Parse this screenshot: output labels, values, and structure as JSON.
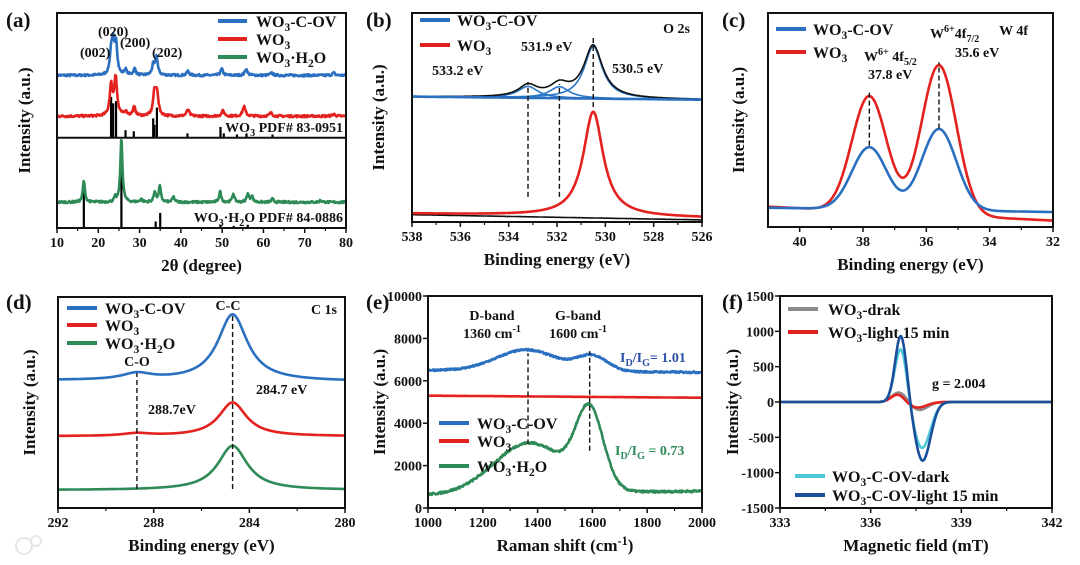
{
  "watermark": "大数跨境",
  "chart_data": [
    {
      "id": "a",
      "panel_label": "(a)",
      "type": "line",
      "xlabel": "2θ (degree)",
      "ylabel": "Intensity (a.u.)",
      "xlim": [
        10,
        80
      ],
      "ylim": [
        0,
        10
      ],
      "xticks": [
        10,
        20,
        30,
        40,
        50,
        60,
        70,
        80
      ],
      "yticks": [],
      "divider_y": 4.2,
      "legend": [
        "WO_3-C-OV",
        "WO_3",
        "WO_3·H_2O"
      ],
      "series": [
        {
          "name": "WO_3-C-OV",
          "color": "#2a6fc0",
          "baseline": [
            7.1,
            7.1
          ],
          "shape": "l",
          "width": 0.35,
          "noise": 0.05,
          "peaks": [
            [
              23.1,
              1.0
            ],
            [
              23.6,
              1.3
            ],
            [
              24.3,
              1.45
            ],
            [
              26.6,
              0.25
            ],
            [
              28.8,
              0.3
            ],
            [
              33.3,
              0.45
            ],
            [
              34.1,
              0.85
            ],
            [
              41.7,
              0.2
            ],
            [
              49.9,
              0.3
            ],
            [
              55.8,
              0.3
            ],
            [
              62,
              0.12
            ],
            [
              77,
              0.12
            ]
          ]
        },
        {
          "name": "WO_3",
          "color": "#e3211f",
          "baseline": [
            5.2,
            5.2
          ],
          "shape": "l",
          "width": 0.4,
          "noise": 0.05,
          "peaks": [
            [
              23.1,
              1.4
            ],
            [
              24.2,
              1.8
            ],
            [
              26.6,
              0.2
            ],
            [
              28.7,
              0.4
            ],
            [
              33.6,
              1.0
            ],
            [
              34.2,
              1.05
            ],
            [
              41.7,
              0.3
            ],
            [
              50.2,
              0.25
            ],
            [
              55.3,
              0.45
            ],
            [
              61.8,
              0.15
            ],
            [
              77,
              0.1
            ]
          ]
        },
        {
          "name": "WO_3·H_2O",
          "color": "#2e8b57",
          "baseline": [
            1.2,
            1.2
          ],
          "shape": "l",
          "width": 0.3,
          "noise": 0.05,
          "peaks": [
            [
              16.5,
              1.0
            ],
            [
              24.1,
              0.2
            ],
            [
              25.6,
              3.0
            ],
            [
              30.4,
              0.15
            ],
            [
              33.7,
              0.5
            ],
            [
              34.9,
              0.75
            ],
            [
              38.2,
              0.25
            ],
            [
              49.5,
              0.5
            ],
            [
              52.7,
              0.4
            ],
            [
              56.2,
              0.4
            ],
            [
              57.2,
              0.3
            ],
            [
              62.2,
              0.15
            ],
            [
              73.9,
              0.1
            ]
          ]
        }
      ],
      "reference_sticks": [
        {
          "name": "WO_3 PDF# 83-0951",
          "base": 4.2,
          "sticks": [
            [
              23.1,
              1.9
            ],
            [
              23.6,
              1.6
            ],
            [
              24.3,
              1.7
            ],
            [
              26.6,
              0.35
            ],
            [
              28.6,
              0.3
            ],
            [
              33.3,
              0.9
            ],
            [
              33.6,
              0.6
            ],
            [
              34.2,
              1.4
            ],
            [
              41.6,
              0.2
            ],
            [
              49.6,
              0.5
            ],
            [
              50.4,
              0.2
            ],
            [
              53.6,
              0.15
            ],
            [
              55.9,
              0.2
            ],
            [
              62.2,
              0.15
            ]
          ]
        },
        {
          "name": "WO_3·H_2O PDF# 84-0886",
          "base": 0,
          "sticks": [
            [
              16.5,
              1.9
            ],
            [
              25.6,
              2.8
            ],
            [
              33.9,
              0.3
            ],
            [
              35.0,
              0.7
            ],
            [
              49.6,
              0.15
            ],
            [
              52.8,
              0.1
            ],
            [
              56.2,
              0.15
            ]
          ]
        }
      ],
      "markers": [],
      "annotations": [
        "(002)",
        "(020)",
        "(200)",
        "(202)",
        "WO_3 PDF# 83-0951",
        "WO_3·H_2O PDF# 84-0886"
      ]
    },
    {
      "id": "b",
      "panel_label": "(b)",
      "type": "line",
      "xlabel": "Binding energy (eV)",
      "ylabel": "Intensity (a.u.)",
      "xlim": [
        538,
        526
      ],
      "ylim": [
        0,
        10
      ],
      "xticks": [
        538,
        536,
        534,
        532,
        530,
        528,
        526
      ],
      "yticks": [],
      "legend": [
        "WO_3-C-OV",
        "WO_3"
      ],
      "series": [
        {
          "name": "WO_3-C-OV fit 533.2 eV",
          "color": "#2a78c8",
          "baseline": [
            6.0,
            5.85
          ],
          "shape": "l",
          "width": 0.5,
          "peaks": [
            [
              533.2,
              0.55
            ]
          ]
        },
        {
          "name": "WO_3-C-OV fit 531.9 eV",
          "color": "#2a78c8",
          "baseline": [
            6.0,
            5.85
          ],
          "shape": "l",
          "width": 0.5,
          "peaks": [
            [
              531.9,
              0.55
            ]
          ]
        },
        {
          "name": "WO_3-C-OV fit 530.5 eV",
          "color": "#2a78c8",
          "baseline": [
            6.0,
            5.85
          ],
          "shape": "l",
          "width": 0.45,
          "peaks": [
            [
              530.5,
              2.5
            ]
          ]
        },
        {
          "name": "WO_3-C-OV envelope",
          "color": "#111111",
          "baseline": [
            6.0,
            5.85
          ],
          "shape": "l",
          "width": 0.47,
          "peaks": [
            [
              533.2,
              0.55
            ],
            [
              531.9,
              0.55
            ],
            [
              530.5,
              2.5
            ]
          ]
        },
        {
          "name": "WO_3-C-OV",
          "color": "#2a6fc0",
          "baseline": [
            6.0,
            5.85
          ],
          "shape": "l",
          "width": 0.5,
          "peaks": []
        },
        {
          "name": "WO_3 background",
          "color": "#111111",
          "baseline": [
            0.35,
            0.1
          ],
          "shape": "l",
          "width": 0.5,
          "peaks": []
        },
        {
          "name": "WO_3",
          "color": "#e3211f",
          "baseline": [
            0.4,
            0.2
          ],
          "shape": "l",
          "width": 0.5,
          "peaks": [
            [
              530.5,
              5.0
            ]
          ]
        }
      ],
      "markers": [
        [
          533.2,
          1.2,
          6.7
        ],
        [
          531.9,
          1.2,
          6.6
        ],
        [
          530.5,
          5.5,
          8.9
        ]
      ],
      "annotations": [
        "O 2s",
        "533.2 eV",
        "531.9 eV",
        "530.5 eV"
      ]
    },
    {
      "id": "c",
      "panel_label": "(c)",
      "type": "line",
      "xlabel": "Binding energy (eV)",
      "ylabel": "Intensity (a.u.)",
      "xlim": [
        41,
        32
      ],
      "ylim": [
        0,
        10
      ],
      "xticks": [
        40,
        38,
        36,
        34,
        32
      ],
      "yticks": [],
      "legend": [
        "WO_3-C-OV",
        "WO_3"
      ],
      "series": [
        {
          "name": "WO_3",
          "color": "#e3211f",
          "baseline": [
            0.95,
            0.3
          ],
          "shape": "g",
          "width": 0.55,
          "peaks": [
            [
              37.8,
              5.4
            ],
            [
              35.6,
              7.0
            ]
          ]
        },
        {
          "name": "WO_3-C-OV",
          "color": "#2a6fc0",
          "baseline": [
            0.9,
            0.7
          ],
          "shape": "g",
          "width": 0.55,
          "peaks": [
            [
              37.8,
              2.9
            ],
            [
              35.6,
              3.8
            ]
          ]
        }
      ],
      "markers": [
        [
          37.8,
          3.8,
          6.3
        ],
        [
          35.6,
          4.6,
          7.7
        ]
      ],
      "annotations": [
        "W  4f",
        "W^{6+} 4f_{5/2}",
        "37.8 eV",
        "W^{6+}4f_{7/2}",
        "35.6 eV"
      ]
    },
    {
      "id": "d",
      "panel_label": "(d)",
      "type": "line",
      "xlabel": "Binding energy (eV)",
      "ylabel": "Intensity (a.u.)",
      "xlim": [
        292,
        280
      ],
      "ylim": [
        0,
        10
      ],
      "xticks": [
        292,
        288,
        284,
        280
      ],
      "yticks": [],
      "legend": [
        "WO_3-C-OV",
        "WO_3",
        "WO_3·H_2O"
      ],
      "series": [
        {
          "name": "WO_3-C-OV",
          "color": "#2a6fc0",
          "baseline": [
            6.05,
            6.0
          ],
          "shape": "l",
          "width": 0.75,
          "peaks": [
            [
              284.7,
              3.15
            ],
            [
              288.7,
              0.3
            ]
          ]
        },
        {
          "name": "WO_3",
          "color": "#e3211f",
          "baseline": [
            3.4,
            3.4
          ],
          "shape": "l",
          "width": 0.7,
          "peaks": [
            [
              284.7,
              1.6
            ],
            [
              288.7,
              0.12
            ]
          ]
        },
        {
          "name": "WO_3·H_2O",
          "color": "#2e8b57",
          "baseline": [
            0.85,
            0.85
          ],
          "shape": "l",
          "width": 0.75,
          "peaks": [
            [
              284.7,
              2.1
            ]
          ]
        }
      ],
      "markers": [
        [
          284.7,
          0.9,
          9.2
        ],
        [
          288.7,
          0.9,
          6.4
        ]
      ],
      "annotations": [
        "C 1s",
        "C-C",
        "C-O",
        "284.7 eV",
        "288.7eV"
      ]
    },
    {
      "id": "e",
      "panel_label": "(e)",
      "type": "line",
      "xlabel": "Raman shift (cm^{-1})",
      "ylabel": "Intensity (a.u.)",
      "xlim": [
        1000,
        2000
      ],
      "ylim": [
        0,
        10000
      ],
      "xticks": [
        1000,
        1200,
        1400,
        1600,
        1800,
        2000
      ],
      "yticks": [
        0,
        2000,
        4000,
        6000,
        8000,
        10000
      ],
      "legend": [
        "WO_3-C-OV",
        "WO_3",
        "WO_3·H_2O"
      ],
      "series": [
        {
          "name": "WO_3-C-OV",
          "color": "#2a6fc0",
          "baseline": [
            6500,
            6400
          ],
          "shape": "g",
          "width": 110,
          "noise": 40,
          "peaks": [
            [
              1360,
              1000
            ],
            [
              1600,
              700,
              55
            ]
          ]
        },
        {
          "name": "WO_3",
          "color": "#e3211f",
          "baseline": [
            5300,
            5200
          ],
          "shape": "g",
          "width": 100,
          "peaks": []
        },
        {
          "name": "WO_3·H_2O",
          "color": "#2e8b57",
          "baseline": [
            600,
            800
          ],
          "shape": "g",
          "width": 130,
          "noise": 50,
          "peaks": [
            [
              1370,
              2400
            ],
            [
              1590,
              3600,
              50
            ]
          ]
        }
      ],
      "markers": [
        [
          1365,
          3000,
          7300
        ],
        [
          1590,
          2700,
          7400
        ]
      ],
      "annotations": [
        "D-band",
        "1360 cm^{-1}",
        "G-band",
        "1600 cm^{-1}",
        "I_D/I_G= 1.01",
        "I_D/I_G = 0.73"
      ],
      "annotation_colors": [
        "#111111",
        "#111111",
        "#111111",
        "#111111",
        "#2a50a8",
        "#2e8b57"
      ]
    },
    {
      "id": "f",
      "panel_label": "(f)",
      "type": "line",
      "xlabel": "Magnetic field (mT)",
      "ylabel": "Intensity (a.u.)",
      "xlim": [
        333,
        342
      ],
      "ylim": [
        -1500,
        1500
      ],
      "xticks": [
        333,
        336,
        339,
        342
      ],
      "yticks": [
        -1500,
        -1000,
        -500,
        0,
        500,
        1000,
        1500
      ],
      "legend": [
        "WO_3-drak",
        "WO_3-light 15 min",
        "WO_3-C-OV-dark",
        "WO_3-C-OV-light 15 min"
      ],
      "series": [
        {
          "name": "WO_3-drak",
          "color": "#8a8a8a",
          "baseline": [
            0,
            0
          ],
          "shape": "g",
          "width": 0.24,
          "peaks": [
            [
              336.95,
              140
            ],
            [
              337.6,
              -115,
              0.28
            ]
          ]
        },
        {
          "name": "WO_3-light 15 min",
          "color": "#e3211f",
          "baseline": [
            0,
            0
          ],
          "shape": "g",
          "width": 0.22,
          "peaks": [
            [
              336.9,
              110
            ],
            [
              337.55,
              -80,
              0.3
            ]
          ]
        },
        {
          "name": "WO_3-C-OV-dark",
          "color": "#4cc8d8",
          "baseline": [
            0,
            0
          ],
          "shape": "g",
          "width": 0.2,
          "peaks": [
            [
              337.0,
              770
            ],
            [
              337.7,
              -650,
              0.28
            ]
          ]
        },
        {
          "name": "WO_3-C-OV-light 15 min",
          "color": "#1b4f9c",
          "baseline": [
            0,
            0
          ],
          "shape": "g",
          "width": 0.19,
          "peaks": [
            [
              337.0,
              950
            ],
            [
              337.72,
              -830,
              0.26
            ]
          ]
        }
      ],
      "markers": [],
      "annotations": [
        "g = 2.004"
      ]
    }
  ]
}
